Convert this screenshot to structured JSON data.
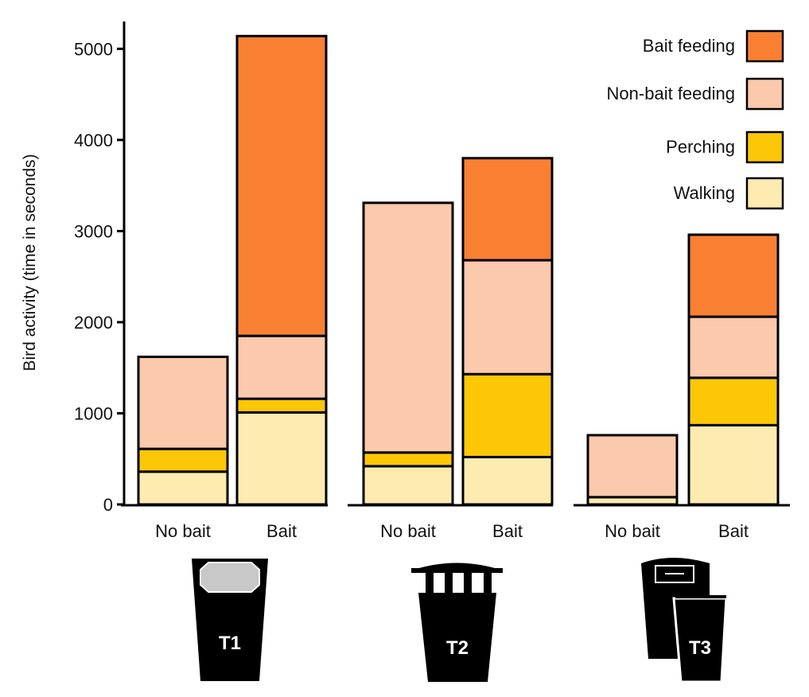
{
  "chart_data": {
    "type": "bar",
    "stacked": true,
    "ylabel": "Bird activity (time in seconds)",
    "ylim": [
      0,
      5300
    ],
    "yticks": [
      0,
      1000,
      2000,
      3000,
      4000,
      5000
    ],
    "groups": [
      {
        "name": "T1",
        "categories": [
          "No bait",
          "Bait"
        ]
      },
      {
        "name": "T2",
        "categories": [
          "No bait",
          "Bait"
        ]
      },
      {
        "name": "T3",
        "categories": [
          "No bait",
          "Bait"
        ]
      }
    ],
    "categories": [
      "No bait",
      "Bait",
      "No bait",
      "Bait",
      "No bait",
      "Bait"
    ],
    "series": [
      {
        "name": "Walking",
        "color": "#fdebb0",
        "values": [
          360,
          1010,
          420,
          520,
          80,
          870
        ]
      },
      {
        "name": "Perching",
        "color": "#fbc707",
        "values": [
          250,
          150,
          150,
          910,
          0,
          520
        ]
      },
      {
        "name": "Non-bait feeding",
        "color": "#fbc9ab",
        "values": [
          1010,
          690,
          2740,
          1250,
          680,
          670
        ]
      },
      {
        "name": "Bait feeding",
        "color": "#f98033",
        "values": [
          0,
          3290,
          0,
          1120,
          0,
          900
        ]
      }
    ],
    "legend": {
      "placement": "top-right",
      "entries": [
        {
          "label": "Bait feeding",
          "color": "#f98033"
        },
        {
          "label": "Non-bait feeding",
          "color": "#fbc9ab"
        },
        {
          "label": "Perching",
          "color": "#fbc707"
        },
        {
          "label": "Walking",
          "color": "#fdebb0"
        }
      ]
    },
    "grid": false
  }
}
